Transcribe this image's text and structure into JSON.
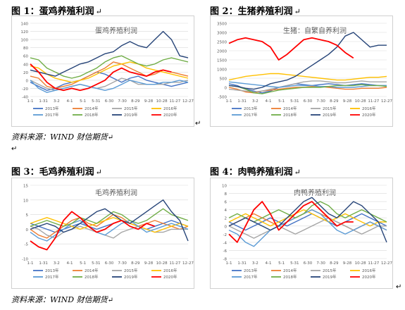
{
  "headers": [
    {
      "label": "图 1：蛋鸡养殖利润",
      "mark": "↵"
    },
    {
      "label": "图 2：生猪养殖利润",
      "mark": "↵"
    },
    {
      "label": "图 3：毛鸡养殖利润",
      "mark": "↵"
    },
    {
      "label": "图 4：肉鸭养殖利润",
      "mark": "↵"
    }
  ],
  "sources": [
    {
      "text": "资料来源：WIND  财信期货",
      "mark": "↵"
    },
    {
      "text": "资料来源：WIND  财信期货",
      "mark": "↵"
    }
  ],
  "marks": {
    "right1": "↵",
    "left_blank": "↵",
    "right2": "↵"
  },
  "chart_data": [
    {
      "type": "line",
      "title": "蛋鸡养殖利润",
      "ylim": [
        -40,
        140
      ],
      "yticks": [
        -40,
        -20,
        0,
        20,
        40,
        60,
        80,
        100,
        120,
        140
      ],
      "xticks": [
        "1-1",
        "1-31",
        "3-2",
        "4-1",
        "5-1",
        "5-31",
        "6-30",
        "7-30",
        "8-29",
        "9-28",
        "10-28",
        "11-27",
        "12-27"
      ],
      "grid": true,
      "legend": "bottom",
      "series": [
        {
          "name": "2013年",
          "color": "#4472c4",
          "values": [
            -5,
            -15,
            -25,
            -20,
            -10,
            -5,
            0,
            10,
            20,
            15,
            5,
            -5,
            5,
            10,
            0,
            -5,
            -10,
            -15,
            -10,
            -5
          ]
        },
        {
          "name": "2014年",
          "color": "#ed7d31",
          "values": [
            10,
            5,
            -15,
            -20,
            -15,
            -10,
            0,
            10,
            20,
            30,
            45,
            40,
            30,
            20,
            10,
            15,
            25,
            20,
            15,
            10
          ]
        },
        {
          "name": "2015年",
          "color": "#a5a5a5",
          "values": [
            0,
            -10,
            -20,
            -25,
            -20,
            -15,
            -10,
            -15,
            -20,
            -15,
            -5,
            5,
            0,
            -10,
            -10,
            -10,
            -10,
            -5,
            -5,
            0
          ]
        },
        {
          "name": "2016年",
          "color": "#ffc000",
          "values": [
            35,
            30,
            15,
            5,
            0,
            -5,
            0,
            5,
            15,
            25,
            35,
            40,
            45,
            40,
            30,
            25,
            20,
            15,
            10,
            5
          ]
        },
        {
          "name": "2017年",
          "color": "#5b9bd5",
          "values": [
            0,
            -20,
            -30,
            -25,
            -20,
            -15,
            -10,
            -15,
            -20,
            -25,
            -20,
            -10,
            0,
            -5,
            -10,
            -10,
            -5,
            -5,
            0,
            -5
          ]
        },
        {
          "name": "2018年",
          "color": "#70ad47",
          "values": [
            55,
            50,
            30,
            20,
            10,
            5,
            10,
            20,
            30,
            45,
            55,
            60,
            50,
            40,
            35,
            40,
            50,
            55,
            50,
            45
          ]
        },
        {
          "name": "2019年",
          "color": "#264478",
          "values": [
            25,
            20,
            15,
            10,
            20,
            30,
            40,
            45,
            55,
            65,
            70,
            85,
            95,
            85,
            80,
            100,
            120,
            100,
            60,
            55
          ]
        },
        {
          "name": "2020年",
          "color": "#ff0000",
          "values": [
            40,
            20,
            -5,
            -20,
            -25,
            -20,
            -25,
            -20,
            -10,
            0,
            20,
            30,
            20,
            15,
            10,
            20,
            25,
            20
          ]
        }
      ]
    },
    {
      "type": "line",
      "title": "生猪：自繁自养利润",
      "ylim": [
        -500,
        3500
      ],
      "yticks": [
        -500,
        0,
        500,
        1000,
        1500,
        2000,
        2500,
        3000,
        3500
      ],
      "xticks": [
        "1-1",
        "1-31",
        "3-2",
        "4-1",
        "5-1",
        "5-31",
        "6-30",
        "7-30",
        "8-29",
        "9-28",
        "10-28",
        "11-27",
        "12-27"
      ],
      "grid": true,
      "legend": "bottom",
      "series": [
        {
          "name": "2013年",
          "color": "#4472c4",
          "values": [
            200,
            100,
            -100,
            -200,
            -300,
            -200,
            0,
            100,
            200,
            150,
            100,
            150,
            200,
            150,
            100,
            150,
            200,
            150,
            100,
            100
          ]
        },
        {
          "name": "2014年",
          "color": "#ed7d31",
          "values": [
            0,
            -100,
            -250,
            -300,
            -200,
            -150,
            -100,
            -50,
            0,
            0,
            50,
            50,
            0,
            -50,
            -100,
            -100,
            -50,
            -50,
            -50,
            0
          ]
        },
        {
          "name": "2015年",
          "color": "#a5a5a5",
          "values": [
            -100,
            -150,
            -200,
            -250,
            -200,
            -100,
            0,
            100,
            200,
            300,
            350,
            350,
            300,
            250,
            250,
            300,
            350,
            300,
            300,
            300
          ]
        },
        {
          "name": "2016年",
          "color": "#ffc000",
          "values": [
            400,
            500,
            600,
            650,
            700,
            750,
            750,
            700,
            650,
            600,
            550,
            500,
            450,
            400,
            400,
            450,
            500,
            550,
            550,
            600
          ]
        },
        {
          "name": "2017年",
          "color": "#5b9bd5",
          "values": [
            300,
            250,
            200,
            150,
            100,
            50,
            0,
            50,
            100,
            100,
            100,
            50,
            50,
            0,
            0,
            0,
            50,
            100,
            100,
            100
          ]
        },
        {
          "name": "2018年",
          "color": "#70ad47",
          "values": [
            100,
            50,
            -100,
            -300,
            -350,
            -250,
            -150,
            -100,
            -50,
            0,
            0,
            0,
            50,
            100,
            100,
            100,
            150,
            100,
            100,
            50
          ]
        },
        {
          "name": "2019年",
          "color": "#264478",
          "values": [
            100,
            50,
            -50,
            -100,
            0,
            200,
            300,
            400,
            600,
            900,
            1200,
            1500,
            1800,
            2200,
            2800,
            3000,
            2600,
            2200,
            2300,
            2300
          ]
        },
        {
          "name": "2020年",
          "color": "#ff0000",
          "values": [
            2400,
            2600,
            2700,
            2600,
            2500,
            2200,
            1500,
            1800,
            2200,
            2600,
            2700,
            2600,
            2500,
            2300,
            1900,
            1600
          ]
        }
      ]
    },
    {
      "type": "line",
      "title": "毛鸡养殖利润",
      "ylim": [
        -10,
        15
      ],
      "yticks": [
        -10,
        -5,
        0,
        5,
        10,
        15
      ],
      "xticks": [
        "1-1",
        "1-31",
        "3-2",
        "4-1",
        "5-1",
        "5-31",
        "6-30",
        "7-30",
        "8-29",
        "9-28",
        "10-28",
        "11-27",
        "12-27"
      ],
      "grid": true,
      "legend": "bottom",
      "series": [
        {
          "name": "2013年",
          "color": "#4472c4",
          "values": [
            2,
            1,
            0,
            -1,
            0,
            1,
            2,
            1,
            0,
            1,
            2,
            3,
            2,
            1,
            0,
            1,
            2,
            3,
            2,
            1
          ]
        },
        {
          "name": "2014年",
          "color": "#ed7d31",
          "values": [
            0,
            -2,
            -3,
            -1,
            1,
            3,
            4,
            2,
            1,
            3,
            5,
            4,
            2,
            1,
            2,
            3,
            2,
            1,
            0,
            1
          ]
        },
        {
          "name": "2015年",
          "color": "#a5a5a5",
          "values": [
            1,
            0,
            -2,
            -3,
            -1,
            0,
            1,
            0,
            -1,
            -2,
            -3,
            -1,
            0,
            1,
            0,
            -1,
            -1,
            0,
            0,
            0
          ]
        },
        {
          "name": "2016年",
          "color": "#ffc000",
          "values": [
            2,
            3,
            4,
            3,
            2,
            1,
            0,
            1,
            2,
            3,
            4,
            3,
            2,
            1,
            0,
            -1,
            0,
            1,
            2,
            1
          ]
        },
        {
          "name": "2017年",
          "color": "#5b9bd5",
          "values": [
            -1,
            -3,
            -4,
            -2,
            0,
            2,
            3,
            1,
            -1,
            -2,
            0,
            2,
            3,
            1,
            -1,
            0,
            1,
            2,
            1,
            0
          ]
        },
        {
          "name": "2018年",
          "color": "#70ad47",
          "values": [
            1,
            2,
            3,
            2,
            1,
            2,
            4,
            3,
            2,
            4,
            6,
            5,
            3,
            2,
            3,
            5,
            7,
            5,
            4,
            3
          ]
        },
        {
          "name": "2019年",
          "color": "#264478",
          "values": [
            0,
            1,
            2,
            1,
            -1,
            0,
            2,
            4,
            6,
            7,
            5,
            3,
            2,
            4,
            6,
            8,
            10,
            6,
            3,
            -4
          ]
        },
        {
          "name": "2020年",
          "color": "#ff0000",
          "values": [
            -4,
            -6,
            -7,
            -3,
            3,
            6,
            4,
            1,
            -1,
            0,
            2,
            3,
            1,
            0,
            2,
            1
          ]
        }
      ]
    },
    {
      "type": "line",
      "title": "肉鸭养殖利润",
      "ylim": [
        -8,
        10
      ],
      "yticks": [
        -8,
        -6,
        -4,
        -2,
        0,
        2,
        4,
        6,
        8,
        10
      ],
      "xticks": [
        "1-1",
        "1-31",
        "3-2",
        "4-1",
        "5-1",
        "5-31",
        "6-30",
        "7-30",
        "8-29",
        "9-28",
        "10-28",
        "11-27",
        "12-27"
      ],
      "grid": true,
      "legend": "bottom",
      "series": [
        {
          "name": "2013年",
          "color": "#4472c4",
          "values": [
            1,
            0,
            -1,
            0,
            1,
            2,
            1,
            0,
            1,
            2,
            3,
            2,
            1,
            0,
            1,
            2,
            3,
            2,
            1,
            0
          ]
        },
        {
          "name": "2014年",
          "color": "#ed7d31",
          "values": [
            0,
            1,
            2,
            3,
            2,
            1,
            0,
            1,
            2,
            3,
            4,
            3,
            2,
            1,
            0,
            -1,
            0,
            1,
            0,
            -1
          ]
        },
        {
          "name": "2015年",
          "color": "#a5a5a5",
          "values": [
            0,
            -1,
            -2,
            -3,
            -2,
            -1,
            0,
            -1,
            -2,
            -1,
            0,
            1,
            2,
            1,
            0,
            -1,
            -2,
            -1,
            0,
            0
          ]
        },
        {
          "name": "2016年",
          "color": "#ffc000",
          "values": [
            1,
            2,
            3,
            2,
            1,
            0,
            1,
            2,
            3,
            4,
            3,
            2,
            1,
            2,
            3,
            2,
            1,
            0,
            1,
            1
          ]
        },
        {
          "name": "2017年",
          "color": "#5b9bd5",
          "values": [
            -1,
            -2,
            -4,
            -5,
            -3,
            -1,
            0,
            1,
            2,
            3,
            4,
            3,
            1,
            -1,
            -2,
            -1,
            0,
            1,
            0,
            -1
          ]
        },
        {
          "name": "2018年",
          "color": "#70ad47",
          "values": [
            2,
            3,
            2,
            1,
            2,
            3,
            4,
            3,
            2,
            3,
            5,
            6,
            5,
            3,
            2,
            3,
            4,
            3,
            2,
            1
          ]
        },
        {
          "name": "2019年",
          "color": "#264478",
          "values": [
            0,
            1,
            2,
            1,
            0,
            -1,
            0,
            2,
            4,
            6,
            7,
            5,
            3,
            2,
            4,
            6,
            5,
            3,
            1,
            -4
          ]
        },
        {
          "name": "2020年",
          "color": "#ff0000",
          "values": [
            -2,
            -4,
            0,
            4,
            6,
            3,
            -1,
            1,
            3,
            5,
            6,
            4,
            2,
            0,
            1,
            1
          ]
        }
      ]
    }
  ]
}
